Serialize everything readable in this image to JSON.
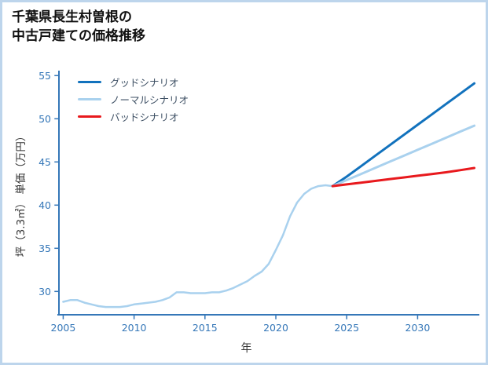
{
  "header": {
    "title_line1": "千葉県長生村曽根の",
    "title_line2": "中古戸建ての価格推移"
  },
  "chart_data": {
    "type": "line",
    "title": "千葉県長生村曽根の中古戸建ての価格推移",
    "xlabel": "年",
    "ylabel": "坪（3.3㎡） 単価（万円）",
    "xlim": [
      2004.7,
      2034.3
    ],
    "ylim": [
      27.3,
      55.3
    ],
    "xticks": [
      2005,
      2010,
      2015,
      2020,
      2025,
      2030
    ],
    "yticks": [
      30,
      35,
      40,
      45,
      50,
      55
    ],
    "grid": false,
    "legend_position": "upper-left-inside",
    "axis_color": "#3577b8",
    "history": {
      "color": "#a9d1ee",
      "line_width": 2.5,
      "x": [
        2005,
        2005.5,
        2006,
        2006.5,
        2007,
        2007.5,
        2008,
        2008.5,
        2009,
        2009.5,
        2010,
        2010.5,
        2011,
        2011.5,
        2012,
        2012.5,
        2013,
        2013.5,
        2014,
        2014.5,
        2015,
        2015.5,
        2016,
        2016.5,
        2017,
        2017.5,
        2018,
        2018.5,
        2019,
        2019.5,
        2020,
        2020.5,
        2021,
        2021.5,
        2022,
        2022.5,
        2023,
        2023.5,
        2024
      ],
      "y": [
        28.8,
        29.0,
        29.0,
        28.7,
        28.5,
        28.3,
        28.2,
        28.2,
        28.2,
        28.3,
        28.5,
        28.6,
        28.7,
        28.8,
        29.0,
        29.3,
        29.9,
        29.9,
        29.8,
        29.8,
        29.8,
        29.9,
        29.9,
        30.1,
        30.4,
        30.8,
        31.2,
        31.8,
        32.3,
        33.2,
        34.8,
        36.5,
        38.7,
        40.3,
        41.3,
        41.9,
        42.2,
        42.3,
        42.2
      ]
    },
    "series": [
      {
        "name": "グッドシナリオ",
        "color": "#1272bd",
        "line_width": 3,
        "x": [
          2024,
          2025,
          2026,
          2027,
          2028,
          2029,
          2030,
          2031,
          2032,
          2033,
          2034
        ],
        "y": [
          42.2,
          43.3,
          44.5,
          45.7,
          46.9,
          48.1,
          49.3,
          50.5,
          51.7,
          52.9,
          54.1
        ]
      },
      {
        "name": "ノーマルシナリオ",
        "color": "#a9d1ee",
        "line_width": 3,
        "x": [
          2024,
          2025,
          2026,
          2027,
          2028,
          2029,
          2030,
          2031,
          2032,
          2033,
          2034
        ],
        "y": [
          42.2,
          42.9,
          43.6,
          44.3,
          45.0,
          45.7,
          46.4,
          47.1,
          47.8,
          48.5,
          49.2
        ]
      },
      {
        "name": "バッドシナリオ",
        "color": "#e8191d",
        "line_width": 3,
        "x": [
          2024,
          2025,
          2026,
          2027,
          2028,
          2029,
          2030,
          2031,
          2032,
          2033,
          2034
        ],
        "y": [
          42.2,
          42.4,
          42.6,
          42.8,
          43.0,
          43.2,
          43.4,
          43.6,
          43.8,
          44.05,
          44.3
        ]
      }
    ]
  }
}
